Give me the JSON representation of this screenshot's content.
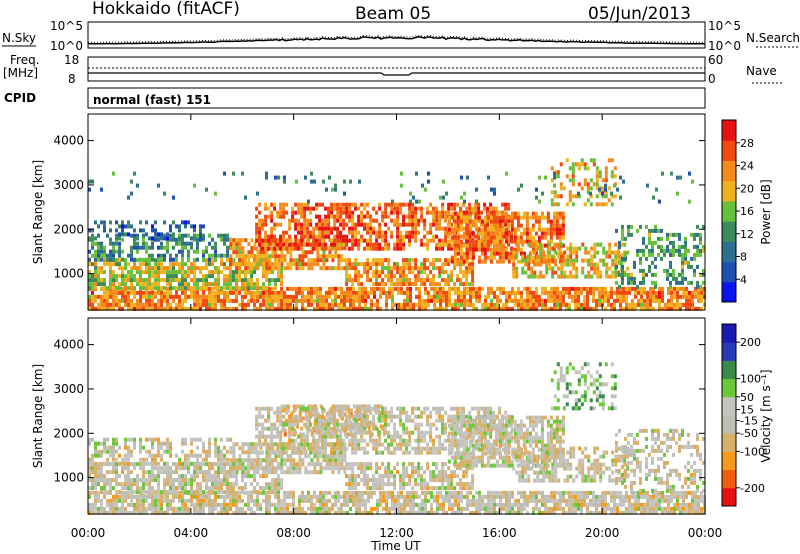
{
  "header": {
    "radar": "Hokkaido (fitACF)",
    "beam": "Beam 05",
    "date": "05/Jun/2013"
  },
  "top_panel": {
    "left_label": "N.Sky",
    "right_label": "N.Search",
    "left_ticks": [
      "10^5",
      "10^0"
    ],
    "right_ticks": [
      "10^5",
      "10^0"
    ]
  },
  "freq_panel": {
    "left_label_line1": "Freq.",
    "left_label_line2": "[MHz]",
    "right_label": "Nave",
    "left_ticks": [
      "18",
      "8"
    ],
    "right_ticks": [
      "60",
      "0"
    ]
  },
  "cpid_panel": {
    "label": "CPID",
    "text": "normal (fast) 151"
  },
  "colors": {
    "power": [
      "#0a14ee",
      "#1f4fb0",
      "#2e6e8e",
      "#3c8c5c",
      "#66c03a",
      "#f0b21e",
      "#f58a1a",
      "#f04a10",
      "#e81010"
    ],
    "velocity": [
      "#e81010",
      "#f25c10",
      "#f59a1a",
      "#d8b06a",
      "#bebeb4",
      "#c4c4c0",
      "#6cc83a",
      "#3a8a4c",
      "#2a3ab4",
      "#1a1ab0"
    ]
  },
  "chart_data": [
    {
      "type": "heatmap",
      "name": "Power",
      "xlabel": "",
      "ylabel": "Slant Range [km]",
      "x_ticks": [
        "00:00",
        "04:00",
        "08:00",
        "12:00",
        "16:00",
        "20:00",
        "00:00"
      ],
      "xlim_hours": [
        0,
        24
      ],
      "y_ticks": [
        1000,
        2000,
        3000,
        4000
      ],
      "ylim": [
        180,
        4600
      ],
      "colorbar": {
        "label": "Power [dB]",
        "ticks": [
          4,
          8,
          12,
          16,
          20,
          24,
          28
        ],
        "range": [
          0,
          32
        ]
      },
      "bands": [
        {
          "t": [
            0,
            24
          ],
          "r": [
            180,
            700
          ],
          "level": 0.72,
          "density": 0.8
        },
        {
          "t": [
            0,
            7.5
          ],
          "r": [
            700,
            1350
          ],
          "level": 0.55,
          "density": 0.75
        },
        {
          "t": [
            0,
            5.5
          ],
          "r": [
            1350,
            1900
          ],
          "level": 0.35,
          "density": 0.55
        },
        {
          "t": [
            0,
            4.5
          ],
          "r": [
            1800,
            2200
          ],
          "level": 0.25,
          "density": 0.4
        },
        {
          "t": [
            5.5,
            10.0
          ],
          "r": [
            1100,
            1800
          ],
          "level": 0.7,
          "density": 0.75
        },
        {
          "t": [
            6.5,
            16.5
          ],
          "r": [
            1600,
            2600
          ],
          "level": 0.8,
          "density": 0.65
        },
        {
          "t": [
            10.0,
            15.0
          ],
          "r": [
            800,
            1350
          ],
          "level": 0.7,
          "density": 0.7
        },
        {
          "t": [
            14.0,
            18.5
          ],
          "r": [
            1300,
            2400
          ],
          "level": 0.75,
          "density": 0.7
        },
        {
          "t": [
            16.5,
            21.0
          ],
          "r": [
            900,
            1700
          ],
          "level": 0.62,
          "density": 0.6
        },
        {
          "t": [
            18.0,
            20.5
          ],
          "r": [
            2600,
            3600
          ],
          "level": 0.65,
          "density": 0.35
        },
        {
          "t": [
            20.5,
            24.0
          ],
          "r": [
            700,
            2100
          ],
          "level": 0.4,
          "density": 0.4
        },
        {
          "t": [
            0,
            24.0
          ],
          "r": [
            2600,
            3300
          ],
          "level": 0.35,
          "density": 0.06
        }
      ]
    },
    {
      "type": "heatmap",
      "name": "Velocity",
      "xlabel": "Time UT",
      "ylabel": "Slant Range [km]",
      "x_ticks": [
        "00:00",
        "04:00",
        "08:00",
        "12:00",
        "16:00",
        "20:00",
        "00:00"
      ],
      "xlim_hours": [
        0,
        24
      ],
      "y_ticks": [
        1000,
        2000,
        3000,
        4000
      ],
      "ylim": [
        180,
        4600
      ],
      "colorbar": {
        "label": "Velocity [m s⁻¹]",
        "ticks": [
          200,
          100,
          50,
          15,
          -15,
          -50,
          -100,
          -200
        ],
        "range": [
          -250,
          250
        ]
      },
      "bands": [
        {
          "t": [
            0,
            24
          ],
          "r": [
            180,
            700
          ],
          "level": 0.45,
          "density": 0.8
        },
        {
          "t": [
            0,
            7.5
          ],
          "r": [
            700,
            1350
          ],
          "level": 0.47,
          "density": 0.75
        },
        {
          "t": [
            0,
            5.5
          ],
          "r": [
            1350,
            1900
          ],
          "level": 0.46,
          "density": 0.55
        },
        {
          "t": [
            5.5,
            10.0
          ],
          "r": [
            1100,
            1800
          ],
          "level": 0.47,
          "density": 0.75
        },
        {
          "t": [
            7.5,
            11.5
          ],
          "r": [
            2000,
            2650
          ],
          "level": 0.36,
          "density": 0.6
        },
        {
          "t": [
            6.5,
            16.5
          ],
          "r": [
            1600,
            2600
          ],
          "level": 0.47,
          "density": 0.65
        },
        {
          "t": [
            10.0,
            15.0
          ],
          "r": [
            800,
            1350
          ],
          "level": 0.46,
          "density": 0.7
        },
        {
          "t": [
            14.0,
            18.5
          ],
          "r": [
            1300,
            2400
          ],
          "level": 0.47,
          "density": 0.7
        },
        {
          "t": [
            16.5,
            21.0
          ],
          "r": [
            900,
            1700
          ],
          "level": 0.47,
          "density": 0.6
        },
        {
          "t": [
            18.0,
            20.5
          ],
          "r": [
            2600,
            3600
          ],
          "level": 0.62,
          "density": 0.35
        },
        {
          "t": [
            20.5,
            24.0
          ],
          "r": [
            700,
            2100
          ],
          "level": 0.47,
          "density": 0.4
        }
      ]
    }
  ]
}
